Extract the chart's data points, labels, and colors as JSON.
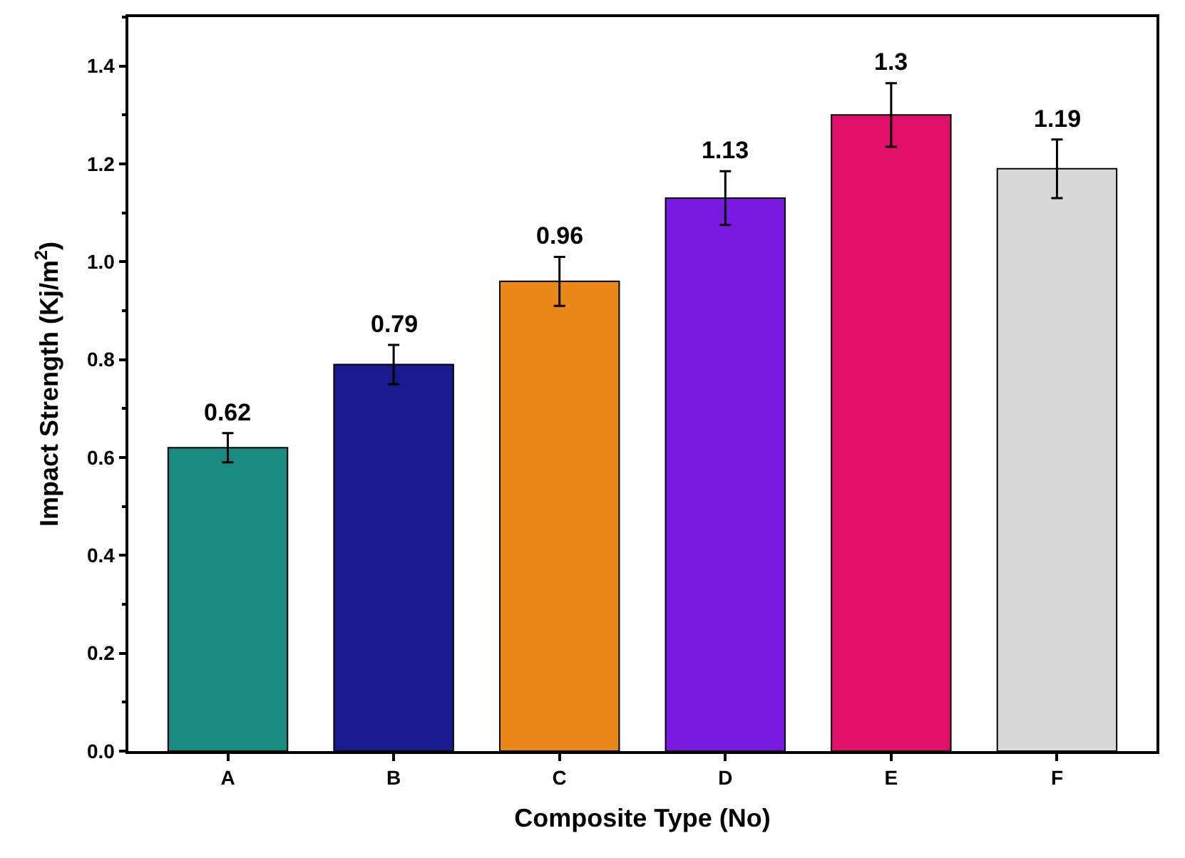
{
  "chart_data": {
    "type": "bar",
    "xlabel": "Composite Type (No)",
    "ylabel": "Impact Strength (Kj/m$^{2}$)",
    "categories": [
      "A",
      "B",
      "C",
      "D",
      "E",
      "F"
    ],
    "values": [
      0.62,
      0.79,
      0.96,
      1.13,
      1.3,
      1.19
    ],
    "errors": [
      0.03,
      0.04,
      0.05,
      0.055,
      0.065,
      0.06
    ],
    "colors": [
      "#1a8a80",
      "#1a1a8c",
      "#e8891a",
      "#7a1ae0",
      "#e0106a",
      "#d8d8d8"
    ],
    "data_labels": true,
    "ylim": [
      0,
      1.5
    ],
    "yticks": [
      {
        "value": 0,
        "label": "0.0"
      },
      {
        "value": 0.2,
        "label": "0.2"
      },
      {
        "value": 0.4,
        "label": "0.4"
      },
      {
        "value": 0.6,
        "label": "0.6"
      },
      {
        "value": 0.8,
        "label": "0.8"
      },
      {
        "value": 1.0,
        "label": "1.0"
      },
      {
        "value": 1.2,
        "label": "1.2"
      },
      {
        "value": 1.4,
        "label": "1.4"
      }
    ]
  }
}
